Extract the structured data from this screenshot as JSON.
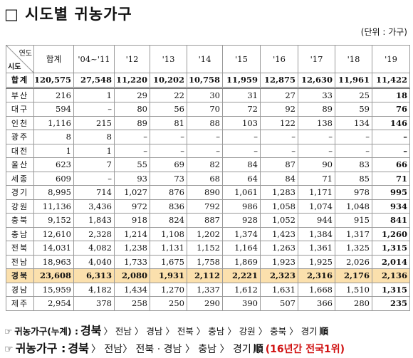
{
  "header": {
    "title": "□ 시도별 귀농가구",
    "unit": "(단위 : 가구)"
  },
  "table": {
    "corner_top": "연도",
    "corner_bottom": "시도",
    "columns": [
      "합계",
      "'04~'11",
      "'12",
      "'13",
      "'14",
      "'15",
      "'16",
      "'17",
      "'18",
      "'19"
    ],
    "rows": [
      [
        "합계",
        "120,575",
        "27,548",
        "11,220",
        "10,202",
        "10,758",
        "11,959",
        "12,875",
        "12,630",
        "11,961",
        "11,422"
      ],
      [
        "부산",
        "216",
        "1",
        "29",
        "22",
        "30",
        "31",
        "27",
        "33",
        "25",
        "18"
      ],
      [
        "대구",
        "594",
        "–",
        "80",
        "56",
        "70",
        "72",
        "92",
        "89",
        "59",
        "76"
      ],
      [
        "인천",
        "1,116",
        "215",
        "89",
        "81",
        "88",
        "103",
        "122",
        "138",
        "134",
        "146"
      ],
      [
        "광주",
        "8",
        "8",
        "–",
        "–",
        "–",
        "–",
        "–",
        "–",
        "–",
        "–"
      ],
      [
        "대전",
        "1",
        "1",
        "–",
        "–",
        "–",
        "–",
        "–",
        "–",
        "–",
        "–"
      ],
      [
        "울산",
        "623",
        "7",
        "55",
        "69",
        "82",
        "84",
        "87",
        "90",
        "83",
        "66"
      ],
      [
        "세종",
        "609",
        "–",
        "93",
        "73",
        "68",
        "64",
        "84",
        "71",
        "85",
        "71"
      ],
      [
        "경기",
        "8,995",
        "714",
        "1,027",
        "876",
        "890",
        "1,061",
        "1,283",
        "1,171",
        "978",
        "995"
      ],
      [
        "강원",
        "11,136",
        "3,436",
        "972",
        "836",
        "792",
        "986",
        "1,058",
        "1,074",
        "1,048",
        "934"
      ],
      [
        "충북",
        "9,152",
        "1,843",
        "918",
        "824",
        "887",
        "928",
        "1,052",
        "944",
        "915",
        "841"
      ],
      [
        "충남",
        "12,610",
        "2,328",
        "1,214",
        "1,108",
        "1,202",
        "1,374",
        "1,423",
        "1,384",
        "1,317",
        "1,260"
      ],
      [
        "전북",
        "14,031",
        "4,082",
        "1,238",
        "1,131",
        "1,152",
        "1,164",
        "1,263",
        "1,361",
        "1,325",
        "1,315"
      ],
      [
        "전남",
        "18,963",
        "4,040",
        "1,733",
        "1,675",
        "1,758",
        "1,869",
        "1,923",
        "1,925",
        "2,026",
        "2,014"
      ],
      [
        "경북",
        "23,608",
        "6,313",
        "2,080",
        "1,931",
        "2,112",
        "2,221",
        "2,323",
        "2,316",
        "2,176",
        "2,136"
      ],
      [
        "경남",
        "15,959",
        "4,182",
        "1,434",
        "1,270",
        "1,337",
        "1,612",
        "1,631",
        "1,668",
        "1,510",
        "1,315"
      ],
      [
        "제주",
        "2,954",
        "378",
        "258",
        "250",
        "290",
        "390",
        "507",
        "366",
        "280",
        "235"
      ]
    ]
  },
  "footer": {
    "lines": [
      {
        "parts": [
          "☞",
          "귀농가구(누계) :",
          "경북",
          "〉 전남 〉 경남 〉 전북 〉 충남 〉 강원 〉 충북 〉 경기",
          "順"
        ]
      },
      {
        "parts": [
          "☞",
          "귀농가구 :",
          "경북",
          "〉 전남〉 전북 · 경남 〉 충남 〉 경기",
          "順",
          "(16년간 전국1위)"
        ]
      }
    ]
  }
}
